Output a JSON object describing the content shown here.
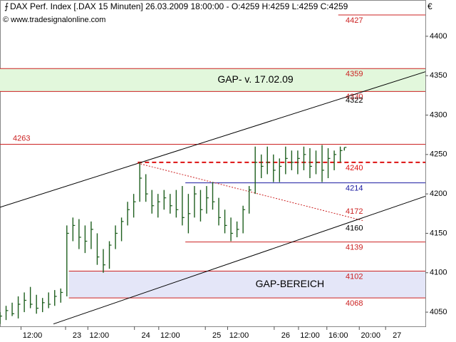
{
  "chart_data": {
    "type": "ohlc",
    "title": "DAX Perf. Index [.DAX  15 Minuten] 26.03.2009 18:00:00 - O:4259 H:4259 L:4259 C:4259",
    "subtitle": "© www.tradesignalonline.com",
    "currency": "€",
    "color": "#1d5e1d",
    "xlim": [
      0,
      210
    ],
    "ylim": [
      4032,
      4446
    ],
    "yticks": [
      4050,
      4100,
      4150,
      4200,
      4250,
      4300,
      4350,
      4400
    ],
    "xticks": [
      {
        "value": 16,
        "label": "12:00"
      },
      {
        "value": 38,
        "label": "23"
      },
      {
        "value": 49,
        "label": "12:00"
      },
      {
        "value": 72,
        "label": "24"
      },
      {
        "value": 84,
        "label": "12:00"
      },
      {
        "value": 107,
        "label": "25"
      },
      {
        "value": 118,
        "label": "12:00"
      },
      {
        "value": 141,
        "label": "26"
      },
      {
        "value": 153,
        "label": "12:00"
      },
      {
        "value": 167,
        "label": "16:00"
      },
      {
        "value": 183,
        "label": "20:00"
      },
      {
        "value": 196,
        "label": "27"
      }
    ],
    "x": [
      0,
      3,
      6,
      9,
      12,
      15,
      18,
      21,
      24,
      27,
      30,
      33,
      36,
      39,
      42,
      45,
      48,
      51,
      54,
      57,
      60,
      63,
      66,
      69,
      72,
      75,
      78,
      81,
      84,
      87,
      90,
      93,
      96,
      99,
      102,
      105,
      108,
      111,
      114,
      117,
      120,
      123,
      126,
      129,
      132,
      135,
      138,
      141,
      144,
      147,
      150,
      153,
      156,
      159,
      162,
      165,
      168,
      170
    ],
    "high": [
      4050,
      4058,
      4062,
      4070,
      4075,
      4082,
      4072,
      4068,
      4075,
      4078,
      4080,
      4160,
      4170,
      4168,
      4160,
      4165,
      4150,
      4130,
      4140,
      4160,
      4170,
      4190,
      4200,
      4240,
      4225,
      4205,
      4200,
      4205,
      4200,
      4205,
      4210,
      4200,
      4210,
      4205,
      4210,
      4215,
      4195,
      4180,
      4170,
      4165,
      4185,
      4210,
      4260,
      4250,
      4260,
      4250,
      4245,
      4260,
      4255,
      4255,
      4260,
      4258,
      4255,
      4262,
      4258,
      4255,
      4260,
      4259
    ],
    "low": [
      4035,
      4040,
      4045,
      4042,
      4050,
      4055,
      4048,
      4050,
      4055,
      4058,
      4062,
      4070,
      4140,
      4130,
      4125,
      4130,
      4110,
      4100,
      4105,
      4130,
      4140,
      4160,
      4170,
      4190,
      4190,
      4175,
      4170,
      4180,
      4175,
      4170,
      4160,
      4150,
      4170,
      4165,
      4175,
      4180,
      4160,
      4150,
      4140,
      4145,
      4150,
      4175,
      4200,
      4220,
      4225,
      4215,
      4215,
      4225,
      4230,
      4225,
      4230,
      4220,
      4225,
      4215,
      4220,
      4230,
      4240,
      4255
    ],
    "close": [
      4045,
      4052,
      4048,
      4060,
      4065,
      4060,
      4055,
      4062,
      4060,
      4070,
      4075,
      4150,
      4160,
      4145,
      4140,
      4155,
      4120,
      4110,
      4135,
      4150,
      4165,
      4180,
      4190,
      4220,
      4200,
      4185,
      4190,
      4195,
      4185,
      4180,
      4170,
      4175,
      4200,
      4180,
      4195,
      4190,
      4170,
      4160,
      4150,
      4155,
      4180,
      4205,
      4240,
      4235,
      4240,
      4230,
      4235,
      4245,
      4240,
      4245,
      4250,
      4235,
      4240,
      4230,
      4245,
      4250,
      4255,
      4259
    ],
    "bands": [
      {
        "from": 4330,
        "to": 4359,
        "x_start": 0,
        "color": "#e2f7dc",
        "label": "GAP- v. 17.02.09"
      },
      {
        "from": 4068,
        "to": 4102,
        "x_start": 34,
        "color": "#e4e6f8",
        "label": "GAP-BEREICH"
      }
    ],
    "levels": [
      {
        "value": 4427,
        "x_start": 167,
        "color": "#cc2222",
        "style": "solid"
      },
      {
        "value": 4359,
        "x_start": 0,
        "color": "#cc2222",
        "style": "solid"
      },
      {
        "value": 4330,
        "x_start": 0,
        "color": "#cc2222",
        "style": "solid"
      },
      {
        "value": 4263,
        "x_start": 0,
        "color": "#cc2222",
        "style": "solid",
        "label_side": "left"
      },
      {
        "value": 4240,
        "x_start": 68,
        "color": "#dd1111",
        "style": "dashed"
      },
      {
        "value": 4214,
        "x_start": 91.5,
        "color": "#1a1aa0",
        "style": "solid"
      },
      {
        "value": 4139,
        "x_start": 91.5,
        "color": "#cc2222",
        "style": "solid"
      },
      {
        "value": 4102,
        "x_start": 34,
        "color": "#cc2222",
        "style": "solid"
      },
      {
        "value": 4068,
        "x_start": 34,
        "color": "#cc2222",
        "style": "solid"
      }
    ],
    "trendlines": [
      {
        "x": [
          0,
          210
        ],
        "y": [
          4183,
          4355
        ],
        "color": "#000000",
        "style": "solid",
        "label": 4322
      },
      {
        "x": [
          26.4,
          210
        ],
        "y": [
          4035,
          4197
        ],
        "color": "#000000",
        "style": "solid",
        "label": 4160
      },
      {
        "x": [
          68,
          179.4
        ],
        "y": [
          4239,
          4166
        ],
        "color": "#cc2222",
        "style": "dotted",
        "label": 4172
      }
    ]
  }
}
